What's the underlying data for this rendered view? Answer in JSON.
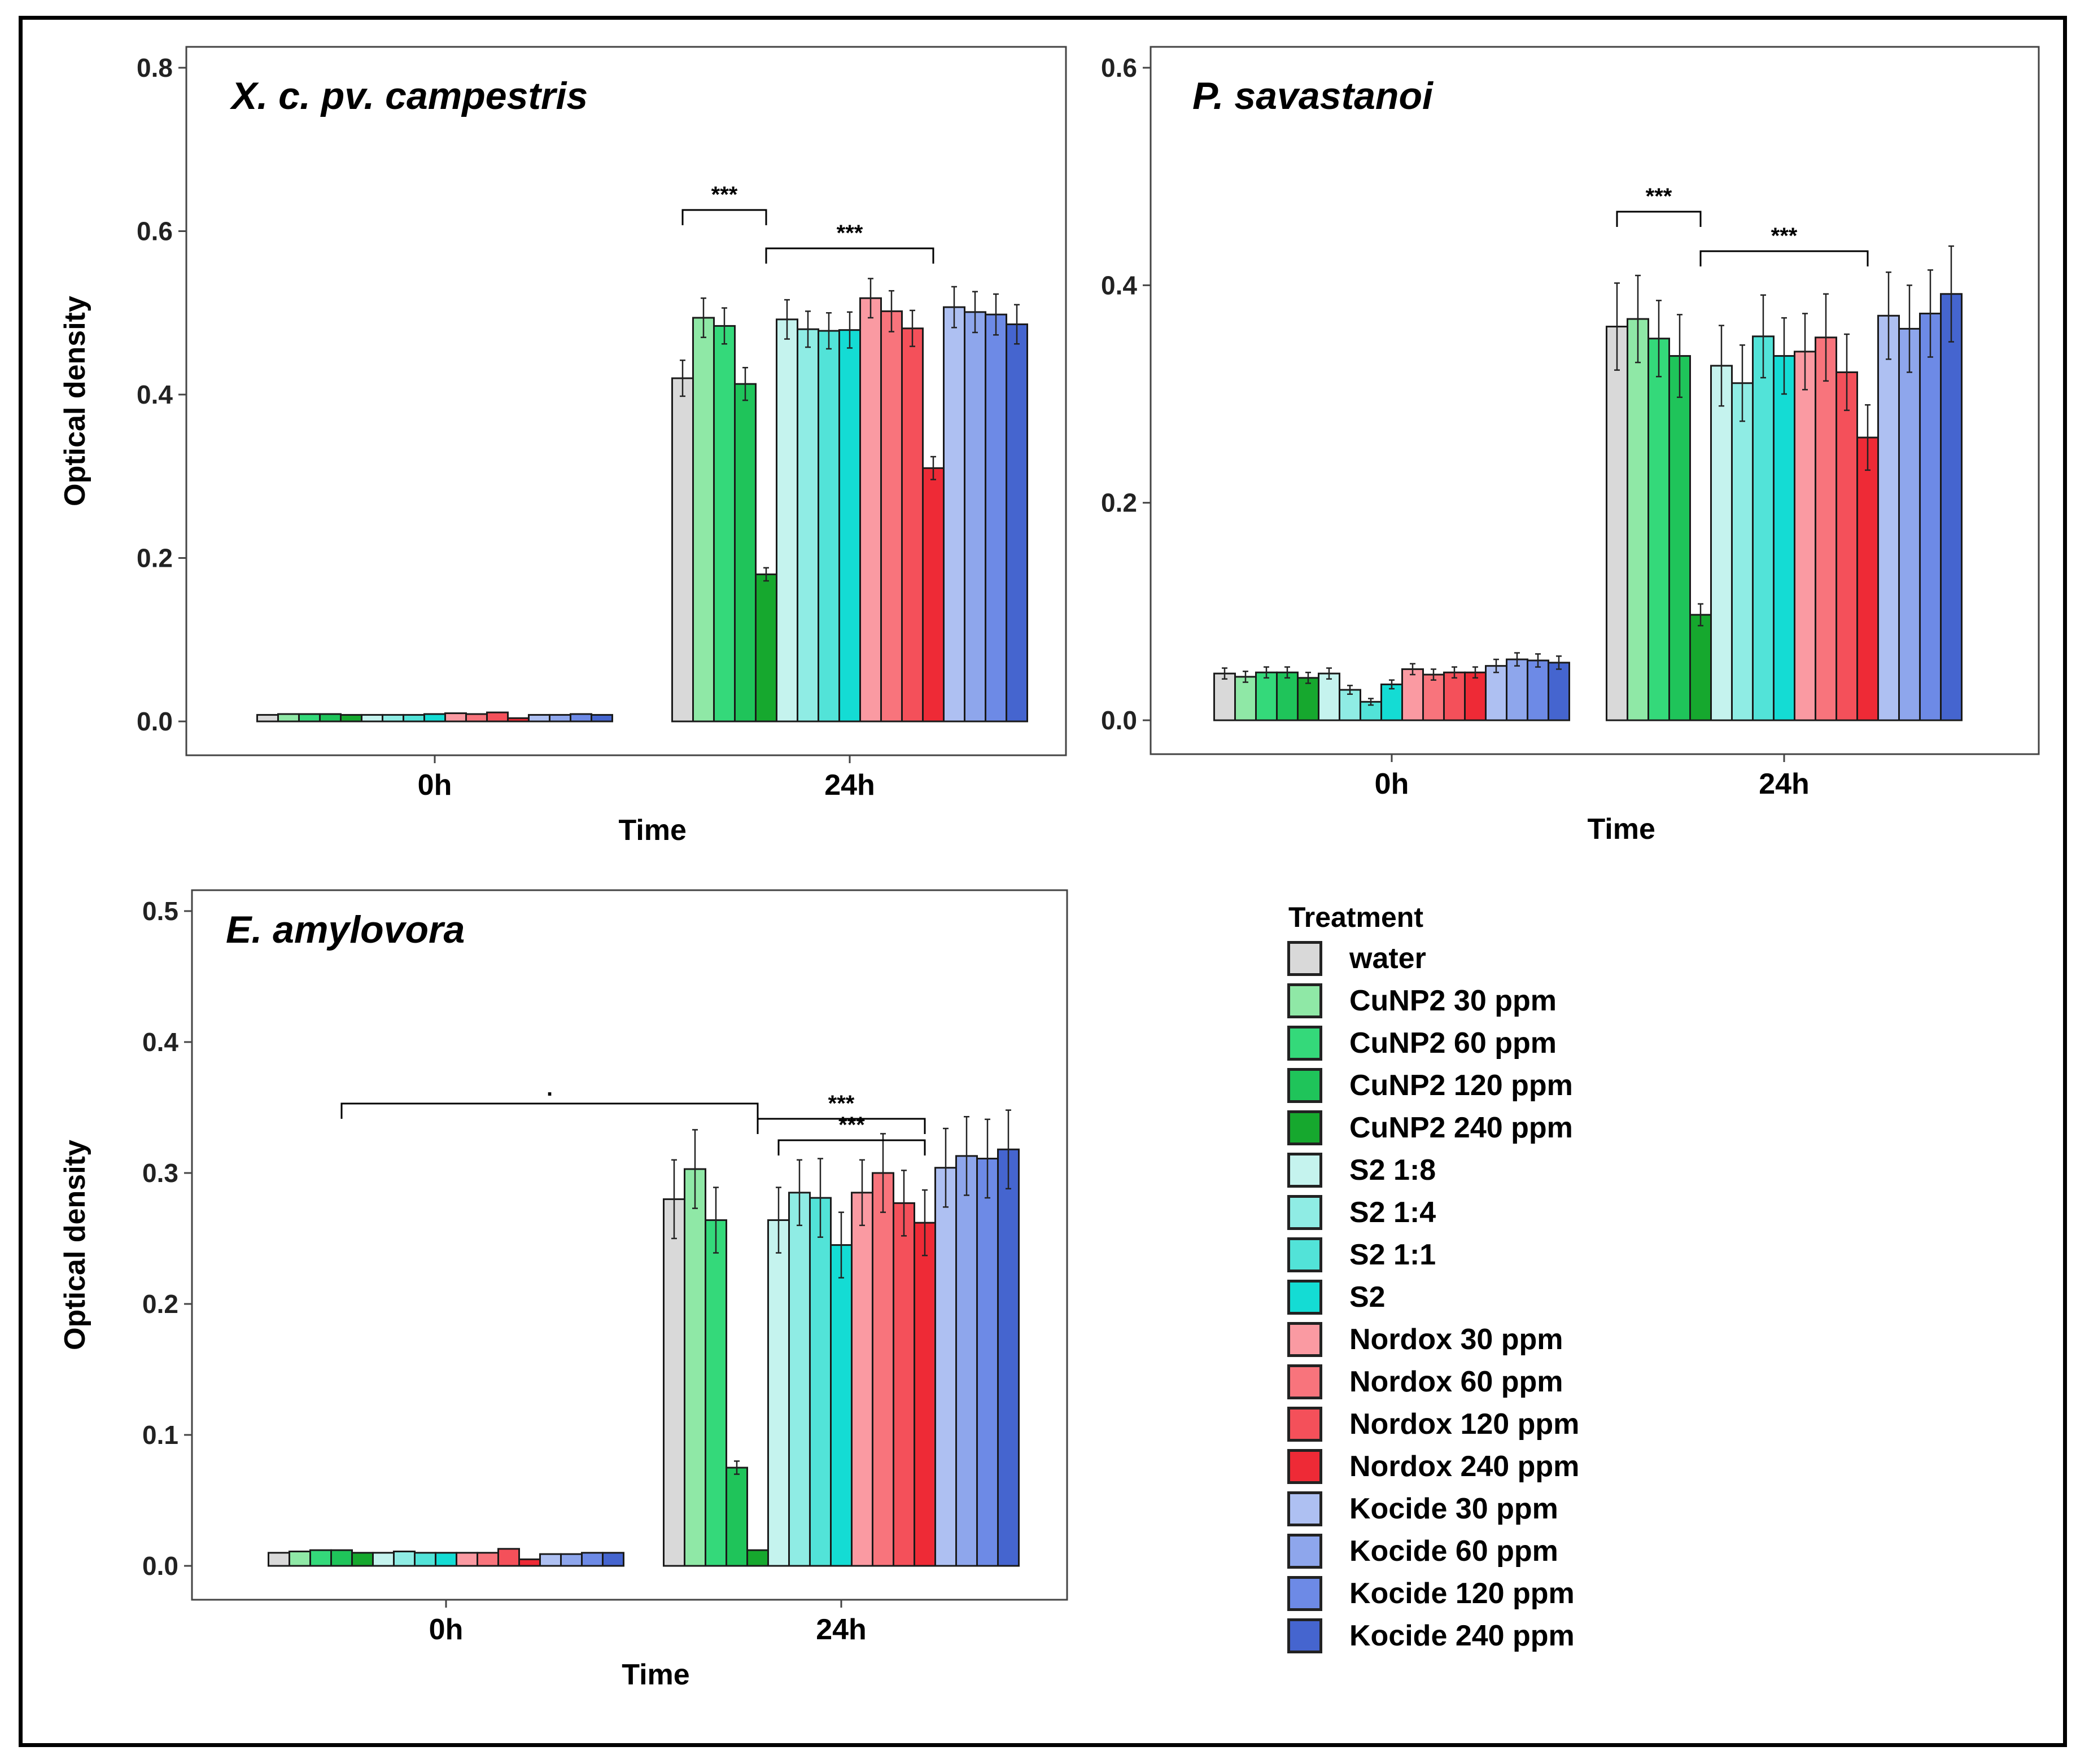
{
  "legend": {
    "title": "Treatment",
    "items": [
      {
        "label": "water",
        "color": "#d9d9d9"
      },
      {
        "label": "CuNP2 30 ppm",
        "color": "#8fe8a6"
      },
      {
        "label": "CuNP2 60 ppm",
        "color": "#34d97a"
      },
      {
        "label": "CuNP2 120 ppm",
        "color": "#1fc45a"
      },
      {
        "label": "CuNP2 240 ppm",
        "color": "#16a82e"
      },
      {
        "label": "S2 1:8",
        "color": "#c5f3ee"
      },
      {
        "label": "S2 1:4",
        "color": "#8fece4"
      },
      {
        "label": "S2 1:1",
        "color": "#52e3d8"
      },
      {
        "label": "S2",
        "color": "#14dcd4"
      },
      {
        "label": "Nordox 30 ppm",
        "color": "#fa9aa2"
      },
      {
        "label": "Nordox 60 ppm",
        "color": "#f8747c"
      },
      {
        "label": "Nordox 120 ppm",
        "color": "#f4505a"
      },
      {
        "label": "Nordox 240 ppm",
        "color": "#ee2a36"
      },
      {
        "label": "Kocide 30 ppm",
        "color": "#aec0f2"
      },
      {
        "label": "Kocide 60 ppm",
        "color": "#8ea6ec"
      },
      {
        "label": "Kocide 120 ppm",
        "color": "#6d8ae6"
      },
      {
        "label": "Kocide 240 ppm",
        "color": "#4565cf"
      }
    ]
  },
  "chart_data": [
    {
      "type": "bar",
      "title": "X. c. pv. campestris",
      "xlabel": "Time",
      "ylabel": "Optical density",
      "categories": [
        "0h",
        "24h"
      ],
      "ylim": [
        0,
        0.8
      ],
      "yticks": [
        "0.0",
        "0.2",
        "0.4",
        "0.6",
        "0.8"
      ],
      "values": {
        "0h": [
          0.008,
          0.009,
          0.009,
          0.009,
          0.008,
          0.008,
          0.008,
          0.008,
          0.009,
          0.01,
          0.009,
          0.011,
          0.004,
          0.008,
          0.008,
          0.009,
          0.008
        ],
        "24h": [
          0.42,
          0.494,
          0.484,
          0.413,
          0.18,
          0.492,
          0.48,
          0.478,
          0.479,
          0.518,
          0.502,
          0.481,
          0.31,
          0.507,
          0.501,
          0.498,
          0.486
        ]
      },
      "errors": {
        "0h": [
          0.001,
          0.001,
          0.001,
          0.001,
          0.001,
          0.001,
          0.001,
          0.001,
          0.001,
          0.001,
          0.001,
          0.001,
          0.001,
          0.001,
          0.001,
          0.001,
          0.001
        ],
        "24h": [
          0.022,
          0.024,
          0.022,
          0.02,
          0.008,
          0.024,
          0.022,
          0.022,
          0.022,
          0.024,
          0.025,
          0.022,
          0.014,
          0.025,
          0.025,
          0.025,
          0.024
        ]
      },
      "annotations": [
        {
          "text": "***",
          "from": "water 24h",
          "to": "CuNP2 240 ppm 24h"
        },
        {
          "text": "***",
          "from": "CuNP2 240 ppm 24h",
          "to": "Nordox 240 ppm 24h"
        }
      ]
    },
    {
      "type": "bar",
      "title": "P. savastanoi",
      "xlabel": "Time",
      "ylabel": "",
      "categories": [
        "0h",
        "24h"
      ],
      "ylim": [
        0,
        0.6
      ],
      "yticks": [
        "0.0",
        "0.2",
        "0.4",
        "0.6"
      ],
      "values": {
        "0h": [
          0.043,
          0.04,
          0.044,
          0.044,
          0.039,
          0.043,
          0.028,
          0.017,
          0.033,
          0.047,
          0.042,
          0.044,
          0.044,
          0.05,
          0.056,
          0.055,
          0.053
        ],
        "24h": [
          0.362,
          0.369,
          0.351,
          0.335,
          0.097,
          0.326,
          0.31,
          0.353,
          0.335,
          0.339,
          0.352,
          0.32,
          0.26,
          0.372,
          0.36,
          0.374,
          0.392
        ]
      },
      "errors": {
        "0h": [
          0.005,
          0.005,
          0.005,
          0.005,
          0.005,
          0.005,
          0.004,
          0.003,
          0.004,
          0.005,
          0.005,
          0.005,
          0.005,
          0.006,
          0.006,
          0.006,
          0.006
        ],
        "24h": [
          0.04,
          0.04,
          0.035,
          0.038,
          0.01,
          0.037,
          0.035,
          0.038,
          0.035,
          0.035,
          0.04,
          0.035,
          0.03,
          0.04,
          0.04,
          0.04,
          0.044
        ]
      },
      "annotations": [
        {
          "text": "***",
          "from": "water 24h",
          "to": "CuNP2 240 ppm 24h"
        },
        {
          "text": "***",
          "from": "CuNP2 240 ppm 24h",
          "to": "Nordox 240 ppm 24h"
        }
      ]
    },
    {
      "type": "bar",
      "title": "E. amylovora",
      "xlabel": "Time",
      "ylabel": "Optical density",
      "categories": [
        "0h",
        "24h"
      ],
      "ylim": [
        0,
        0.5
      ],
      "yticks": [
        "0.0",
        "0.1",
        "0.2",
        "0.3",
        "0.4",
        "0.5"
      ],
      "values": {
        "0h": [
          0.01,
          0.011,
          0.012,
          0.012,
          0.01,
          0.01,
          0.011,
          0.01,
          0.01,
          0.01,
          0.01,
          0.013,
          0.005,
          0.009,
          0.009,
          0.01,
          0.01
        ],
        "24h": [
          0.28,
          0.303,
          0.264,
          0.075,
          0.012,
          0.264,
          0.285,
          0.281,
          0.245,
          0.285,
          0.3,
          0.277,
          0.262,
          0.304,
          0.313,
          0.311,
          0.318
        ]
      },
      "errors": {
        "0h": [
          0.001,
          0.001,
          0.001,
          0.001,
          0.001,
          0.001,
          0.001,
          0.001,
          0.001,
          0.001,
          0.001,
          0.001,
          0.001,
          0.001,
          0.001,
          0.001,
          0.001
        ],
        "24h": [
          0.03,
          0.03,
          0.025,
          0.005,
          0.001,
          0.025,
          0.025,
          0.03,
          0.025,
          0.025,
          0.03,
          0.025,
          0.025,
          0.03,
          0.03,
          0.03,
          0.03
        ]
      },
      "annotations": [
        {
          "text": ".",
          "from": "CuNP2 120 ppm 0h",
          "to": "CuNP2 240 ppm 24h"
        },
        {
          "text": "***",
          "from": "CuNP2 240 ppm 24h",
          "to": "Nordox 240 ppm 24h"
        },
        {
          "text": "***",
          "from": "S2 1:8 24h",
          "to": "Nordox 240 ppm 24h"
        }
      ]
    }
  ]
}
